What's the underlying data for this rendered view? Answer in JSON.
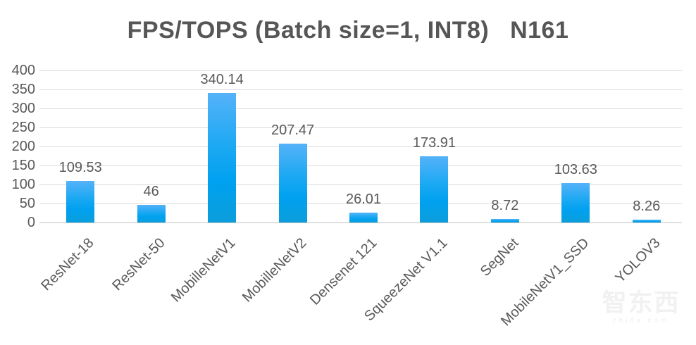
{
  "header": {
    "title": "FPS/TOPS (Batch size=1, INT8)   N161"
  },
  "chart_data": {
    "type": "bar",
    "title": "FPS/TOPS (Batch size=1, INT8)   N161",
    "categories": [
      "ResNet-18",
      "ResNet-50",
      "MobilleNetV1",
      "MobilleNetV2",
      "Densenet 121",
      "SqueezeNet V1.1",
      "SegNet",
      "MobileNetV1_SSD",
      "YOLOV3"
    ],
    "values": [
      109.53,
      46,
      340.14,
      207.47,
      26.01,
      173.91,
      8.72,
      103.63,
      8.26
    ],
    "value_labels": [
      "109.53",
      "46",
      "340.14",
      "207.47",
      "26.01",
      "173.91",
      "8.72",
      "103.63",
      "8.26"
    ],
    "xlabel": "",
    "ylabel": "",
    "ylim": [
      0,
      400
    ],
    "yticks": [
      0,
      50,
      100,
      150,
      200,
      250,
      300,
      350,
      400
    ],
    "grid": true,
    "legend_position": "none",
    "colors": {
      "bar_top": "#55b2f9",
      "bar_bottom": "#0c9edb",
      "text": "#595959",
      "gridline": "#dbdbdb",
      "zero_line": "#c4c4c4"
    }
  },
  "watermark": {
    "logo_text": "智东西",
    "domain_text": "zhidx.com"
  }
}
